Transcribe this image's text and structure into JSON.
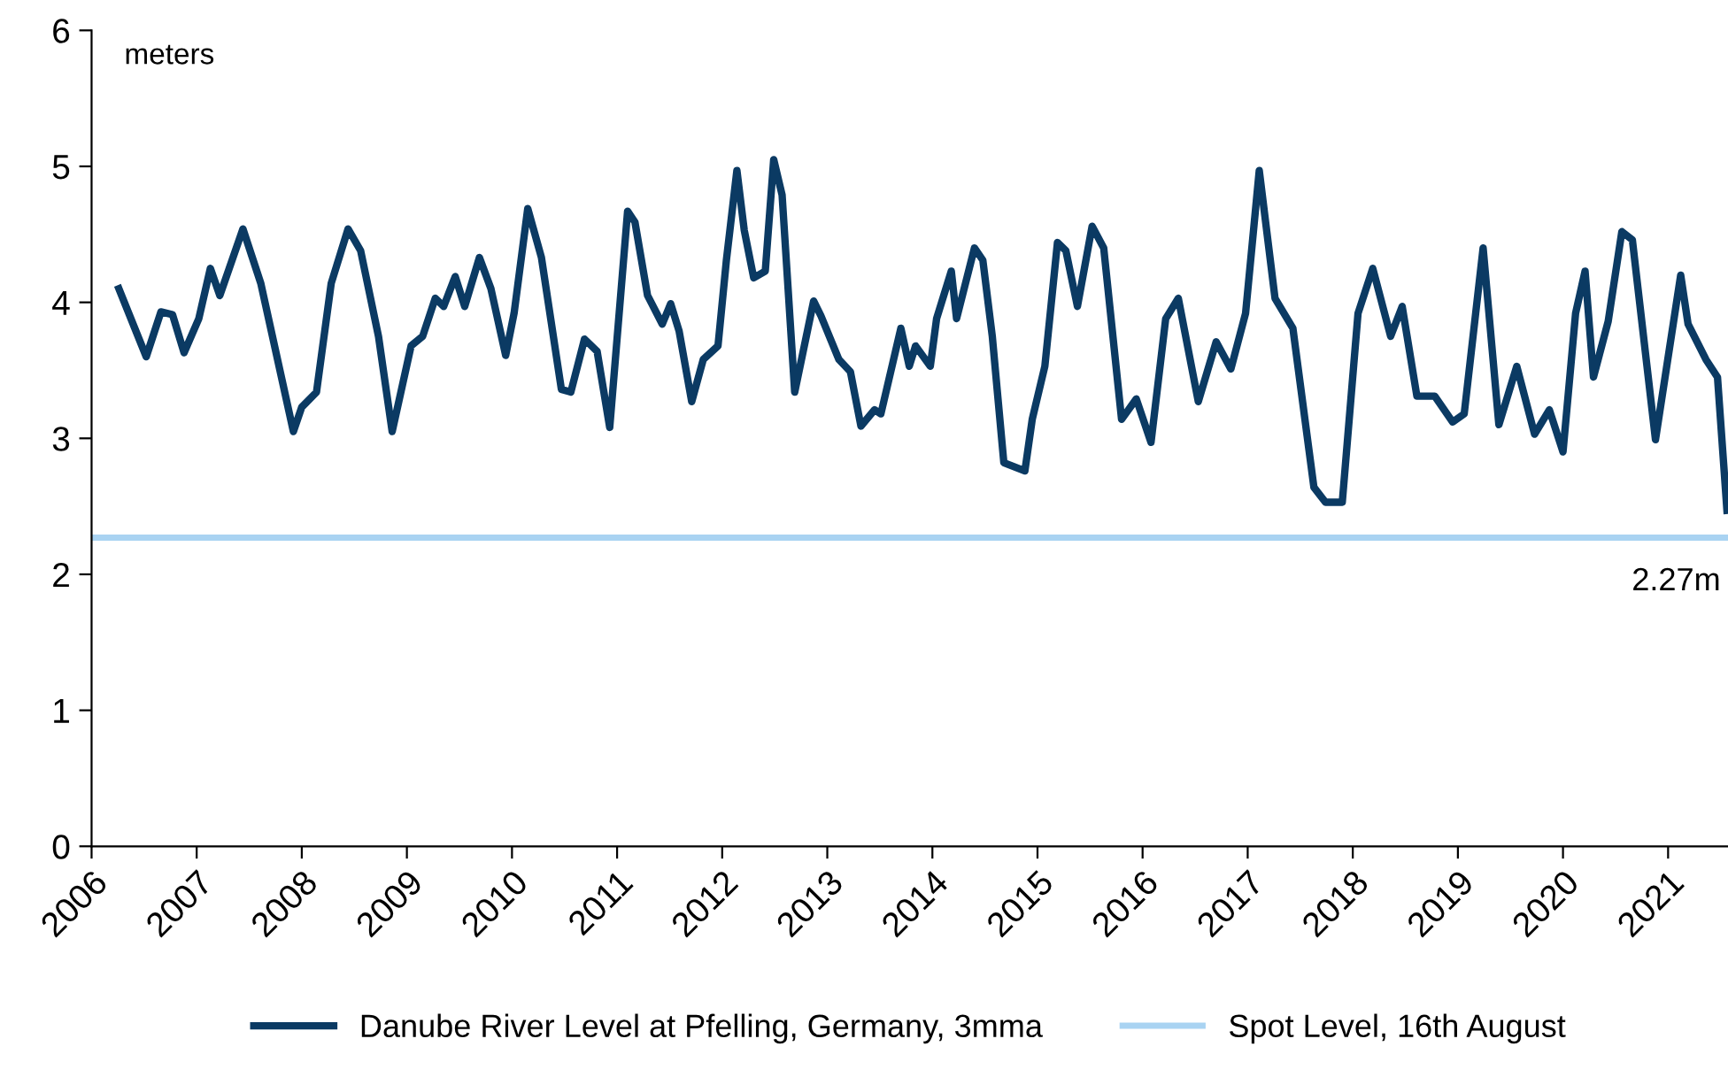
{
  "chart_data": {
    "type": "line",
    "ylabel": "meters",
    "xlim": [
      2006,
      2021.57
    ],
    "xticks": [
      2006,
      2007,
      2008,
      2009,
      2010,
      2011,
      2012,
      2013,
      2014,
      2015,
      2016,
      2017,
      2018,
      2019,
      2020,
      2021
    ],
    "ylim": [
      0,
      6
    ],
    "yticks": [
      0,
      1,
      2,
      3,
      4,
      5,
      6
    ],
    "grid": false,
    "legend": "bottom",
    "annotations": [
      {
        "text": "2.27m",
        "x": 2021.57,
        "y": 2.27
      }
    ],
    "series": [
      {
        "name": "Danube River Level at Pfelling, Germany, 3mma",
        "color": "#0b3a63",
        "x": [
          2006.26,
          2006.52,
          2006.66,
          2006.77,
          2006.88,
          2007.02,
          2007.13,
          2007.22,
          2007.44,
          2007.61,
          2007.92,
          2008.0,
          2008.14,
          2008.28,
          2008.44,
          2008.56,
          2008.73,
          2008.86,
          2009.04,
          2009.15,
          2009.27,
          2009.35,
          2009.46,
          2009.55,
          2009.69,
          2009.8,
          2009.94,
          2010.02,
          2010.15,
          2010.28,
          2010.47,
          2010.56,
          2010.69,
          2010.81,
          2010.93,
          2011.1,
          2011.17,
          2011.29,
          2011.43,
          2011.51,
          2011.59,
          2011.71,
          2011.82,
          2011.96,
          2012.04,
          2012.14,
          2012.21,
          2012.3,
          2012.41,
          2012.49,
          2012.57,
          2012.69,
          2012.87,
          2012.94,
          2013.11,
          2013.22,
          2013.32,
          2013.45,
          2013.51,
          2013.7,
          2013.78,
          2013.84,
          2013.98,
          2014.04,
          2014.18,
          2014.23,
          2014.4,
          2014.48,
          2014.57,
          2014.68,
          2014.88,
          2014.95,
          2015.07,
          2015.19,
          2015.27,
          2015.38,
          2015.52,
          2015.63,
          2015.8,
          2015.94,
          2016.08,
          2016.22,
          2016.34,
          2016.53,
          2016.7,
          2016.84,
          2016.98,
          2017.11,
          2017.26,
          2017.43,
          2017.63,
          2017.74,
          2017.9,
          2018.05,
          2018.19,
          2018.36,
          2018.47,
          2018.61,
          2018.78,
          2018.95,
          2019.06,
          2019.24,
          2019.39,
          2019.56,
          2019.73,
          2019.87,
          2020.0,
          2020.12,
          2020.21,
          2020.29,
          2020.43,
          2020.56,
          2020.66,
          2020.88,
          2021.12,
          2021.19,
          2021.36,
          2021.47,
          2021.56
        ],
        "values": [
          4.1,
          3.6,
          3.93,
          3.91,
          3.63,
          3.88,
          4.25,
          4.05,
          4.54,
          4.14,
          3.05,
          3.23,
          3.34,
          4.14,
          4.54,
          4.38,
          3.75,
          3.05,
          3.68,
          3.75,
          4.03,
          3.97,
          4.19,
          3.97,
          4.33,
          4.1,
          3.61,
          3.92,
          4.69,
          4.33,
          3.36,
          3.34,
          3.73,
          3.64,
          3.08,
          4.67,
          4.59,
          4.05,
          3.84,
          3.99,
          3.79,
          3.27,
          3.58,
          3.68,
          4.31,
          4.97,
          4.53,
          4.18,
          4.23,
          5.05,
          4.79,
          3.34,
          4.01,
          3.9,
          3.58,
          3.49,
          3.09,
          3.21,
          3.18,
          3.81,
          3.53,
          3.68,
          3.53,
          3.88,
          4.23,
          3.88,
          4.4,
          4.31,
          3.75,
          2.82,
          2.76,
          3.14,
          3.53,
          4.44,
          4.38,
          3.97,
          4.56,
          4.4,
          3.14,
          3.29,
          2.97,
          3.88,
          4.03,
          3.27,
          3.71,
          3.51,
          3.92,
          4.97,
          4.03,
          3.81,
          2.64,
          2.53,
          2.53,
          3.92,
          4.25,
          3.75,
          3.97,
          3.31,
          3.31,
          3.12,
          3.18,
          4.4,
          3.1,
          3.53,
          3.03,
          3.21,
          2.9,
          3.92,
          4.23,
          3.45,
          3.86,
          4.52,
          4.46,
          2.99,
          4.2,
          3.84,
          3.58,
          3.45,
          2.47
        ]
      },
      {
        "name": "Spot Level, 16th August",
        "color": "#a9d3f2",
        "x": [
          2006,
          2021.57
        ],
        "values": [
          2.27,
          2.27
        ]
      }
    ]
  }
}
